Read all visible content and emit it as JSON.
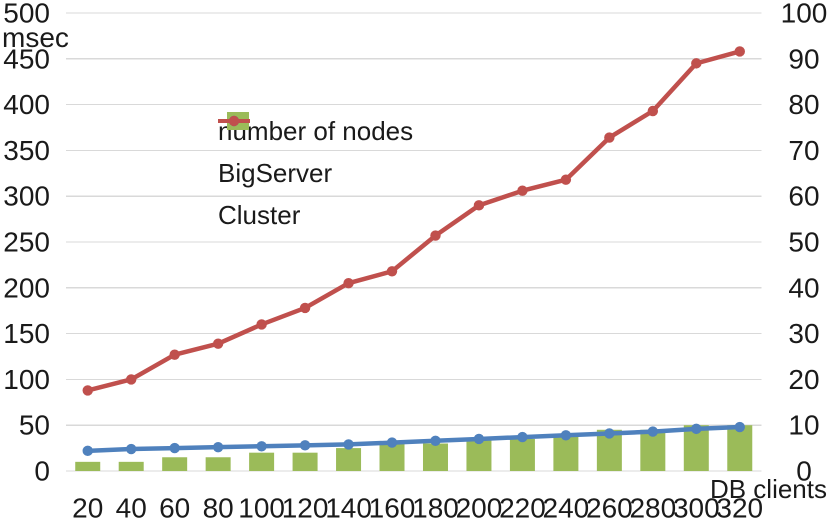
{
  "figure": {
    "x_axis_title": "DB clients",
    "left_axis_unit": "msec"
  },
  "chart_data": {
    "type": "combo-bar-line",
    "title": "",
    "x_label": "DB clients",
    "categories": [
      20,
      40,
      60,
      80,
      100,
      120,
      140,
      160,
      180,
      200,
      220,
      240,
      260,
      280,
      300,
      320
    ],
    "left_axis": {
      "unit": "msec",
      "min": 0,
      "max": 500,
      "step": 50,
      "ticks": [
        500,
        450,
        400,
        350,
        300,
        250,
        200,
        150,
        100,
        50,
        0
      ]
    },
    "right_axis": {
      "min": 0,
      "max": 100,
      "step": 10,
      "ticks": [
        100,
        90,
        80,
        70,
        60,
        50,
        40,
        30,
        20,
        10,
        0
      ]
    },
    "grid": true,
    "grid_color": "#d9d9d9",
    "text_color": "#1a1a1a",
    "legend_position": "inside-upper-left",
    "series": [
      {
        "name": "number of nodes",
        "type": "bar",
        "axis": "right",
        "color": "#9bbb59",
        "values": [
          2,
          2,
          3,
          3,
          4,
          4,
          5,
          6,
          6,
          7,
          7,
          8,
          9,
          9,
          10,
          10
        ]
      },
      {
        "name": "BigServer",
        "type": "line",
        "axis": "left",
        "color": "#4f81bd",
        "values": [
          22,
          24,
          25,
          26,
          27,
          28,
          29,
          31,
          33,
          35,
          37,
          39,
          41,
          43,
          46,
          48
        ]
      },
      {
        "name": "Cluster",
        "type": "line",
        "axis": "left",
        "color": "#c0504d",
        "values": [
          88,
          100,
          127,
          139,
          160,
          178,
          205,
          218,
          257,
          290,
          306,
          318,
          364,
          393,
          445,
          458
        ]
      }
    ]
  }
}
